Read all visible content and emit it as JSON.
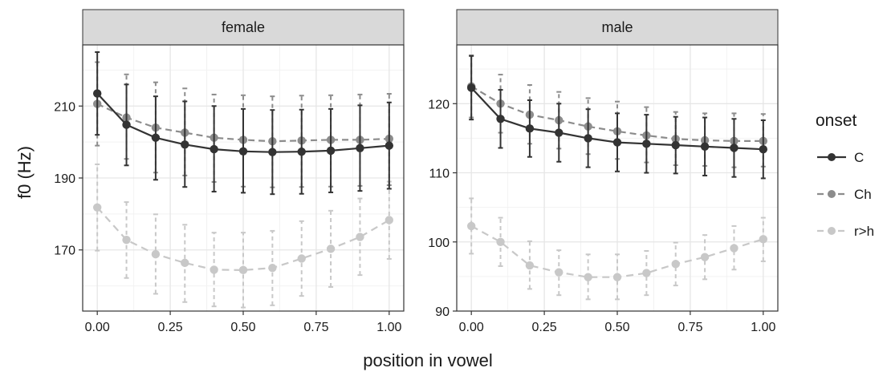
{
  "chart_data": {
    "type": "line",
    "xlabel": "position in vowel",
    "ylabel": "f0 (Hz)",
    "x": [
      0,
      0.1,
      0.2,
      0.3,
      0.4,
      0.5,
      0.6,
      0.7,
      0.8,
      0.9,
      1.0
    ],
    "x_tick_labels": [
      "0.00",
      "0.25",
      "0.50",
      "0.75",
      "1.00"
    ],
    "x_ticks": [
      0,
      0.25,
      0.5,
      0.75,
      1.0
    ],
    "xlim": [
      -0.05,
      1.05
    ],
    "grid": true,
    "legend": {
      "title": "onset",
      "placement": "right",
      "entries": [
        {
          "label": "C",
          "color": "#333333",
          "dash": "solid"
        },
        {
          "label": "Ch",
          "color": "#8c8c8c",
          "dash": "dashed"
        },
        {
          "label": "r>h",
          "color": "#c8c8c8",
          "dash": "dashed"
        }
      ]
    },
    "panels": [
      {
        "strip": "female",
        "ylim": [
          153,
          227
        ],
        "y_ticks": [
          170,
          190,
          210
        ],
        "y_tick_labels": [
          "170",
          "190",
          "210"
        ],
        "series": [
          {
            "name": "C",
            "values": [
              213.5,
              204.8,
              201.2,
              199.3,
              198.0,
              197.4,
              197.2,
              197.3,
              197.6,
              198.3,
              199.0
            ],
            "lower": [
              202.0,
              193.5,
              189.5,
              187.5,
              186.2,
              185.9,
              185.5,
              185.6,
              186.0,
              186.4,
              187.0
            ],
            "upper": [
              225.0,
              216.0,
              212.7,
              211.3,
              210.0,
              209.2,
              208.9,
              209.0,
              209.2,
              210.2,
              211.0
            ]
          },
          {
            "name": "Ch",
            "values": [
              210.6,
              206.8,
              204.0,
              202.6,
              201.2,
              200.6,
              200.2,
              200.4,
              200.6,
              200.6,
              200.9
            ],
            "lower": [
              199.0,
              195.3,
              191.5,
              190.7,
              188.9,
              187.6,
              187.4,
              187.5,
              187.6,
              187.8,
              188.0
            ],
            "upper": [
              222.2,
              218.8,
              216.6,
              214.9,
              213.2,
              213.0,
              212.7,
              212.9,
              213.0,
              213.2,
              213.4
            ]
          },
          {
            "name": "r>h",
            "values": [
              181.8,
              172.8,
              168.8,
              166.4,
              164.5,
              164.4,
              165.0,
              167.6,
              170.3,
              173.6,
              178.3
            ],
            "lower": [
              169.8,
              162.2,
              157.8,
              155.5,
              154.3,
              154.0,
              154.6,
              157.2,
              159.7,
              163.0,
              167.5
            ],
            "upper": [
              193.8,
              183.3,
              179.9,
              177.0,
              174.8,
              174.8,
              175.3,
              178.0,
              180.9,
              184.3,
              189.0
            ]
          }
        ]
      },
      {
        "strip": "male",
        "ylim": [
          90,
          128.5
        ],
        "y_ticks": [
          90,
          100,
          110,
          120
        ],
        "y_tick_labels": [
          "90",
          "100",
          "110",
          "120"
        ],
        "series": [
          {
            "name": "C",
            "values": [
              122.3,
              117.8,
              116.4,
              115.8,
              115.0,
              114.4,
              114.2,
              114.0,
              113.8,
              113.6,
              113.4
            ],
            "lower": [
              117.7,
              113.6,
              112.3,
              111.6,
              110.8,
              110.2,
              110.0,
              109.9,
              109.6,
              109.4,
              109.2
            ],
            "upper": [
              126.9,
              122.0,
              120.5,
              120.0,
              119.2,
              118.6,
              118.4,
              118.1,
              118.0,
              117.8,
              117.6
            ]
          },
          {
            "name": "Ch",
            "values": [
              122.5,
              120.0,
              118.4,
              117.6,
              116.7,
              116.0,
              115.4,
              114.9,
              114.7,
              114.6,
              114.6
            ],
            "lower": [
              118.0,
              115.8,
              114.2,
              113.5,
              112.7,
              112.0,
              111.5,
              111.1,
              111.0,
              110.8,
              110.9
            ],
            "upper": [
              127.0,
              124.2,
              122.7,
              121.7,
              120.8,
              120.3,
              119.5,
              118.8,
              118.6,
              118.6,
              118.5
            ]
          },
          {
            "name": "r>h",
            "values": [
              102.3,
              100.0,
              96.6,
              95.6,
              94.9,
              94.9,
              95.5,
              96.8,
              97.8,
              99.1,
              100.4
            ],
            "lower": [
              98.3,
              96.5,
              93.2,
              92.3,
              91.7,
              91.7,
              92.3,
              93.7,
              94.6,
              96.0,
              97.2
            ],
            "upper": [
              106.3,
              103.5,
              100.1,
              98.8,
              98.2,
              98.2,
              98.7,
              99.9,
              101.0,
              102.3,
              103.5
            ]
          }
        ]
      }
    ]
  }
}
